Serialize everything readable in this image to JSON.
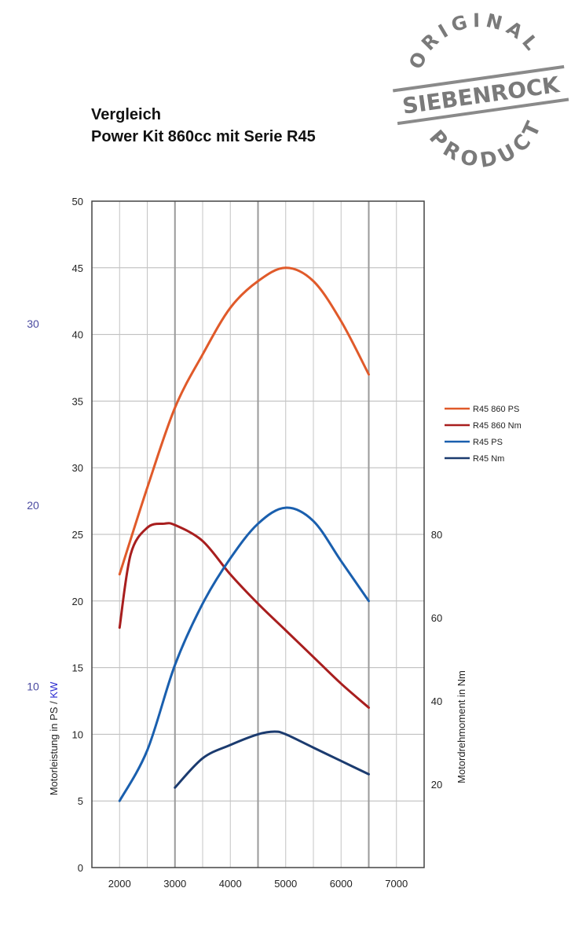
{
  "title": {
    "line1": "Vergleich",
    "line2": "Power Kit 860cc mit Serie R45"
  },
  "stamp": {
    "top": "ORIGINAL",
    "middle": "SIEBENROCK",
    "bottom": "PRODUCT"
  },
  "chart_data": {
    "type": "line",
    "xlabel": "",
    "x_ticks": [
      2000,
      3000,
      4000,
      5000,
      6000,
      7000
    ],
    "xlim": [
      1500,
      7500
    ],
    "ylabel_left": "Motorleistung in PS / KW",
    "ylabel_left_parts": {
      "ps": "Motorleistung in PS /",
      "kw": "KW"
    },
    "ylim_left": [
      0,
      50
    ],
    "y_ticks_left": [
      0,
      5,
      10,
      15,
      20,
      25,
      30,
      35,
      40,
      45,
      50
    ],
    "kw_ticks": [
      10,
      20,
      30
    ],
    "ylabel_right": "Motordrehmoment in Nm",
    "y_ticks_right": [
      20,
      40,
      60,
      80
    ],
    "right_axis_scale_note": "right axis Nm value = left axis PS value * 3.2",
    "colors": {
      "r45_860_ps": "#e05a2a",
      "r45_860_nm": "#a81e1e",
      "r45_ps": "#1a5fae",
      "r45_nm": "#1b3b6f"
    },
    "series": [
      {
        "name": "R45 860 PS",
        "key": "r45_860_ps",
        "x": [
          2000,
          2500,
          3000,
          3500,
          4000,
          4500,
          5000,
          5500,
          6000,
          6500
        ],
        "values": [
          22,
          28.5,
          34.5,
          38.5,
          42,
          44,
          45,
          44,
          41,
          37
        ]
      },
      {
        "name": "R45 860 Nm",
        "key": "r45_860_nm",
        "x": [
          2000,
          2200,
          2500,
          2800,
          3000,
          3500,
          4000,
          4500,
          5000,
          5500,
          6000,
          6500
        ],
        "values": [
          18,
          23.5,
          25.5,
          25.8,
          25.7,
          24.5,
          22,
          19.8,
          17.8,
          15.8,
          13.8,
          12
        ]
      },
      {
        "name": "R45 PS",
        "key": "r45_ps",
        "x": [
          2000,
          2500,
          3000,
          3500,
          4000,
          4500,
          5000,
          5500,
          6000,
          6500
        ],
        "values": [
          5,
          8.8,
          15.2,
          19.8,
          23.2,
          25.8,
          27,
          26,
          23,
          20
        ]
      },
      {
        "name": "R45 Nm",
        "key": "r45_nm",
        "x": [
          3000,
          3500,
          4000,
          4500,
          4800,
          5000,
          5500,
          6000,
          6500
        ],
        "values": [
          6,
          8.2,
          9.2,
          10,
          10.2,
          10,
          9,
          8,
          7
        ]
      }
    ],
    "legend": [
      "R45 860 PS",
      "R45 860 Nm",
      "R45 PS",
      "R45 Nm"
    ],
    "legend_position": "right-middle",
    "grid": true
  }
}
